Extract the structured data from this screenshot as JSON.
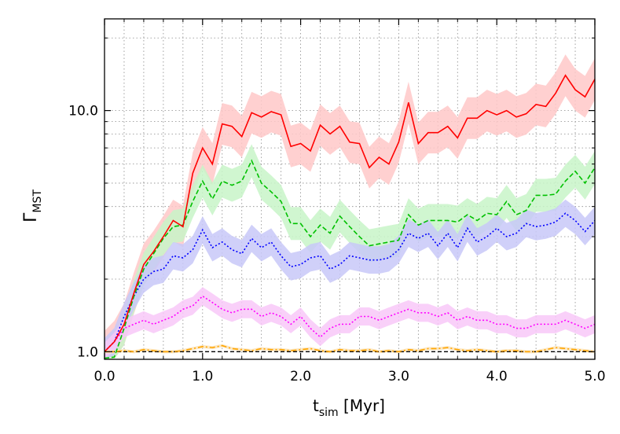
{
  "chart_data": {
    "type": "line",
    "xlabel": {
      "main": "t",
      "sub": "sim",
      "suffix": " [Myr]"
    },
    "ylabel": {
      "main": "Γ",
      "sub": "MST"
    },
    "xlim": [
      0,
      5
    ],
    "ylim": [
      0.93,
      24
    ],
    "yscale": "log",
    "grid": true,
    "x_ticks": [
      0,
      1,
      2,
      3,
      4,
      5
    ],
    "x_tick_labels": [
      "0.0",
      "1.0",
      "2.0",
      "3.0",
      "4.0",
      "5.0"
    ],
    "y_ticks": [
      1,
      10
    ],
    "y_tick_labels": [
      "1.0",
      "10.0"
    ],
    "reference_line": {
      "y": 1.0,
      "style": "dashed",
      "color": "#000000"
    },
    "x": [
      0.0,
      0.1,
      0.2,
      0.3,
      0.4,
      0.5,
      0.6,
      0.7,
      0.8,
      0.9,
      1.0,
      1.1,
      1.2,
      1.3,
      1.4,
      1.5,
      1.6,
      1.7,
      1.8,
      1.9,
      2.0,
      2.1,
      2.2,
      2.3,
      2.4,
      2.5,
      2.6,
      2.7,
      2.8,
      2.9,
      3.0,
      3.1,
      3.2,
      3.3,
      3.4,
      3.5,
      3.6,
      3.7,
      3.8,
      3.9,
      4.0,
      4.1,
      4.2,
      4.3,
      4.4,
      4.5,
      4.6,
      4.7,
      4.8,
      4.9,
      5.0
    ],
    "series": [
      {
        "color": "#ff0000",
        "band_color": "#ffc8c8",
        "style": "solid",
        "values": [
          1.0,
          1.1,
          1.3,
          1.75,
          2.3,
          2.6,
          3.0,
          3.5,
          3.3,
          5.5,
          7.0,
          6.0,
          8.8,
          8.6,
          7.8,
          9.8,
          9.4,
          9.9,
          9.6,
          7.1,
          7.3,
          6.8,
          8.7,
          8.0,
          8.6,
          7.4,
          7.3,
          5.8,
          6.4,
          6.0,
          7.4,
          10.8,
          7.3,
          8.1,
          8.1,
          8.6,
          7.7,
          9.3,
          9.3,
          10.0,
          9.6,
          10.0,
          9.4,
          9.7,
          10.6,
          10.4,
          11.8,
          14.0,
          12.2,
          11.4,
          13.5
        ],
        "band_halfwidth_factor": 1.22
      },
      {
        "color": "#00c000",
        "band_color": "#c8f5c8",
        "style": "dashed",
        "values": [
          0.94,
          0.95,
          1.25,
          1.7,
          2.2,
          2.55,
          2.95,
          3.3,
          3.35,
          4.2,
          5.1,
          4.3,
          5.1,
          4.9,
          5.1,
          6.2,
          5.0,
          4.6,
          4.2,
          3.4,
          3.4,
          3.0,
          3.35,
          3.1,
          3.65,
          3.3,
          3.0,
          2.75,
          2.8,
          2.85,
          2.9,
          3.7,
          3.35,
          3.5,
          3.5,
          3.5,
          3.45,
          3.7,
          3.5,
          3.75,
          3.7,
          4.2,
          3.7,
          3.85,
          4.45,
          4.45,
          4.5,
          5.1,
          5.6,
          5.0,
          5.8
        ],
        "band_halfwidth_factor": 1.17
      },
      {
        "color": "#0000ff",
        "band_color": "#c8c8f8",
        "style": "dotted",
        "values": [
          1.0,
          1.1,
          1.4,
          1.7,
          2.0,
          2.15,
          2.2,
          2.5,
          2.45,
          2.65,
          3.2,
          2.7,
          2.85,
          2.65,
          2.55,
          2.95,
          2.7,
          2.85,
          2.5,
          2.25,
          2.3,
          2.45,
          2.5,
          2.2,
          2.3,
          2.5,
          2.45,
          2.4,
          2.4,
          2.45,
          2.65,
          3.1,
          2.95,
          3.1,
          2.75,
          3.1,
          2.7,
          3.25,
          2.85,
          3.0,
          3.25,
          3.0,
          3.1,
          3.4,
          3.3,
          3.35,
          3.45,
          3.75,
          3.5,
          3.15,
          3.5
        ],
        "band_halfwidth_factor": 1.14
      },
      {
        "color": "#ff00ff",
        "band_color": "#f8c8f8",
        "style": "dotted",
        "values": [
          1.0,
          1.1,
          1.25,
          1.3,
          1.35,
          1.3,
          1.35,
          1.4,
          1.5,
          1.55,
          1.7,
          1.6,
          1.5,
          1.45,
          1.5,
          1.5,
          1.4,
          1.45,
          1.4,
          1.3,
          1.4,
          1.25,
          1.15,
          1.25,
          1.3,
          1.3,
          1.4,
          1.4,
          1.35,
          1.4,
          1.45,
          1.5,
          1.45,
          1.45,
          1.4,
          1.45,
          1.35,
          1.4,
          1.35,
          1.35,
          1.3,
          1.3,
          1.25,
          1.25,
          1.3,
          1.3,
          1.3,
          1.35,
          1.3,
          1.25,
          1.3
        ],
        "band_halfwidth_factor": 1.09
      },
      {
        "color": "#ffa500",
        "band_color": "#fbe3b8",
        "style": "dashdot",
        "values": [
          1.0,
          1.0,
          1.01,
          1.0,
          1.02,
          1.01,
          1.0,
          1.0,
          1.01,
          1.03,
          1.05,
          1.04,
          1.06,
          1.03,
          1.02,
          1.01,
          1.03,
          1.02,
          1.02,
          1.01,
          1.02,
          1.03,
          1.01,
          1.0,
          1.02,
          1.01,
          1.01,
          1.02,
          1.0,
          1.01,
          1.0,
          1.02,
          1.01,
          1.03,
          1.03,
          1.04,
          1.02,
          1.01,
          1.02,
          1.01,
          1.0,
          1.01,
          1.01,
          1.0,
          1.0,
          1.02,
          1.04,
          1.03,
          1.02,
          1.01,
          1.0
        ],
        "band_halfwidth_factor": 1.015
      }
    ]
  }
}
